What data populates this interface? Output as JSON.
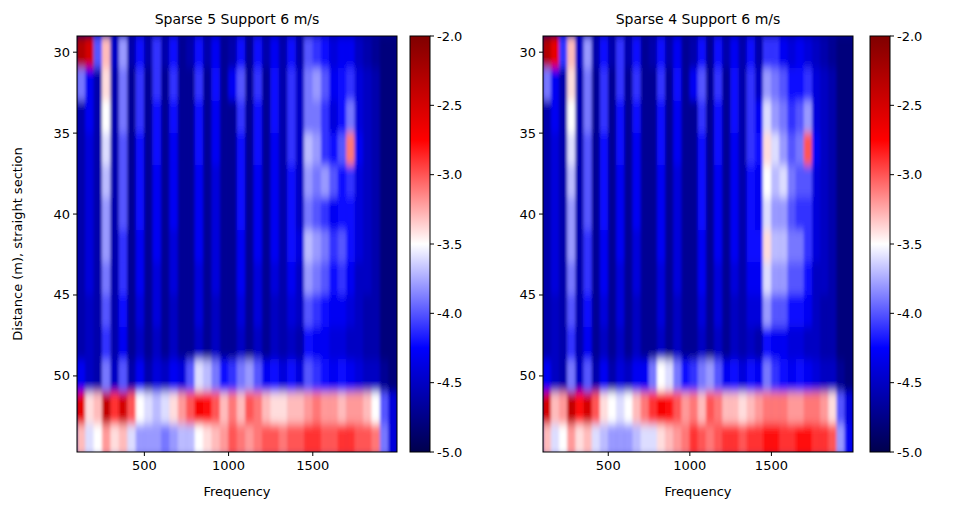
{
  "chart_data": [
    {
      "type": "heatmap",
      "title": "Sparse 5 Support 6 m/s",
      "x_label": "Frequency",
      "y_label": "Distance (m), straight section",
      "x": [
        125,
        175,
        225,
        275,
        325,
        375,
        425,
        475,
        525,
        575,
        625,
        675,
        725,
        775,
        825,
        875,
        925,
        975,
        1025,
        1075,
        1125,
        1175,
        1225,
        1275,
        1325,
        1375,
        1425,
        1475,
        1525,
        1575,
        1625,
        1675,
        1725,
        1775,
        1825,
        1875,
        1925,
        1975
      ],
      "y": [
        30,
        32,
        34,
        36,
        38,
        40,
        42,
        44,
        46,
        48,
        50,
        52,
        54
      ],
      "values": [
        [
          -2.3,
          -2.5,
          -4.0,
          -3.3,
          -4.5,
          -3.8,
          -4.6,
          -4.2,
          -4.6,
          -4.1,
          -4.6,
          -4.2,
          -4.7,
          -4.6,
          -4.2,
          -4.6,
          -4.3,
          -4.7,
          -4.6,
          -4.2,
          -4.7,
          -4.2,
          -4.6,
          -4.3,
          -4.6,
          -4.2,
          -4.6,
          -4.0,
          -4.1,
          -4.2,
          -4.4,
          -4.3,
          -4.3,
          -4.5,
          -4.6,
          -4.7,
          -4.8,
          -4.8
        ],
        [
          -3.9,
          -4.3,
          -4.6,
          -3.4,
          -4.6,
          -3.9,
          -4.7,
          -4.1,
          -4.7,
          -4.1,
          -4.7,
          -4.1,
          -4.7,
          -4.7,
          -4.1,
          -4.7,
          -4.2,
          -4.7,
          -4.3,
          -4.0,
          -4.7,
          -4.1,
          -4.7,
          -4.2,
          -4.6,
          -4.1,
          -4.5,
          -3.9,
          -3.8,
          -4.0,
          -4.3,
          -4.2,
          -4.1,
          -4.4,
          -4.5,
          -4.6,
          -4.8,
          -4.8
        ],
        [
          -4.6,
          -4.3,
          -4.6,
          -3.5,
          -4.6,
          -3.9,
          -4.7,
          -4.1,
          -4.7,
          -4.2,
          -4.7,
          -4.2,
          -4.7,
          -4.7,
          -4.2,
          -4.7,
          -4.3,
          -4.7,
          -4.7,
          -4.1,
          -4.7,
          -4.2,
          -4.7,
          -4.2,
          -4.6,
          -4.1,
          -4.5,
          -3.9,
          -3.9,
          -4.1,
          -4.4,
          -4.2,
          -3.9,
          -4.4,
          -4.5,
          -4.6,
          -4.8,
          -4.8
        ],
        [
          -4.6,
          -4.4,
          -4.6,
          -3.6,
          -4.6,
          -4.0,
          -4.7,
          -4.2,
          -4.7,
          -4.2,
          -4.7,
          -4.3,
          -4.7,
          -4.7,
          -4.2,
          -4.7,
          -4.3,
          -4.7,
          -4.7,
          -4.2,
          -4.7,
          -4.2,
          -4.7,
          -4.3,
          -4.6,
          -4.1,
          -4.5,
          -3.7,
          -3.8,
          -4.1,
          -4.2,
          -4.0,
          -3.1,
          -4.3,
          -4.5,
          -4.6,
          -4.8,
          -4.8
        ],
        [
          -4.6,
          -4.4,
          -4.6,
          -3.7,
          -4.6,
          -4.0,
          -4.7,
          -4.2,
          -4.7,
          -4.3,
          -4.7,
          -4.3,
          -4.7,
          -4.7,
          -4.3,
          -4.7,
          -4.4,
          -4.7,
          -4.7,
          -4.2,
          -4.7,
          -4.3,
          -4.7,
          -4.3,
          -4.6,
          -4.2,
          -4.5,
          -3.8,
          -3.9,
          -3.8,
          -4.0,
          -4.2,
          -4.1,
          -4.4,
          -4.5,
          -4.6,
          -4.8,
          -4.8
        ],
        [
          -4.6,
          -4.4,
          -4.6,
          -3.8,
          -4.6,
          -4.0,
          -4.7,
          -4.2,
          -4.7,
          -4.3,
          -4.7,
          -4.3,
          -4.7,
          -4.7,
          -4.3,
          -4.7,
          -4.4,
          -4.7,
          -4.7,
          -4.2,
          -4.7,
          -4.3,
          -4.7,
          -4.3,
          -4.6,
          -4.2,
          -4.5,
          -3.9,
          -4.0,
          -4.1,
          -4.3,
          -4.2,
          -4.2,
          -4.4,
          -4.5,
          -4.6,
          -4.8,
          -4.8
        ],
        [
          -4.6,
          -4.4,
          -4.6,
          -3.8,
          -4.6,
          -4.1,
          -4.7,
          -4.3,
          -4.7,
          -4.3,
          -4.7,
          -4.4,
          -4.7,
          -4.7,
          -4.3,
          -4.7,
          -4.4,
          -4.7,
          -4.7,
          -4.3,
          -4.7,
          -4.3,
          -4.7,
          -4.3,
          -4.6,
          -4.2,
          -4.4,
          -3.7,
          -3.8,
          -3.9,
          -4.1,
          -4.0,
          -4.2,
          -4.4,
          -4.5,
          -4.6,
          -4.8,
          -4.8
        ],
        [
          -4.6,
          -4.4,
          -4.6,
          -3.9,
          -4.6,
          -4.1,
          -4.7,
          -4.3,
          -4.7,
          -4.4,
          -4.7,
          -4.4,
          -4.7,
          -4.7,
          -4.4,
          -4.7,
          -4.4,
          -4.7,
          -4.7,
          -4.3,
          -4.7,
          -4.4,
          -4.7,
          -4.4,
          -4.6,
          -4.3,
          -4.5,
          -3.8,
          -3.9,
          -4.0,
          -4.2,
          -4.1,
          -4.3,
          -4.5,
          -4.5,
          -4.6,
          -4.8,
          -4.8
        ],
        [
          -4.6,
          -4.5,
          -4.6,
          -4.0,
          -4.6,
          -4.2,
          -4.7,
          -4.4,
          -4.7,
          -4.4,
          -4.7,
          -4.5,
          -4.7,
          -4.7,
          -4.4,
          -4.7,
          -4.5,
          -4.7,
          -4.7,
          -4.4,
          -4.7,
          -4.4,
          -4.7,
          -4.5,
          -4.6,
          -4.4,
          -4.5,
          -4.0,
          -4.1,
          -4.2,
          -4.3,
          -4.3,
          -4.4,
          -4.5,
          -4.6,
          -4.6,
          -4.8,
          -4.8
        ],
        [
          -4.6,
          -4.5,
          -4.6,
          -4.1,
          -4.6,
          -4.3,
          -4.7,
          -4.5,
          -4.7,
          -4.5,
          -4.7,
          -4.5,
          -4.7,
          -4.7,
          -4.5,
          -4.7,
          -4.5,
          -4.7,
          -4.7,
          -4.5,
          -4.7,
          -4.5,
          -4.7,
          -4.5,
          -4.6,
          -4.5,
          -4.6,
          -4.2,
          -4.3,
          -4.3,
          -4.4,
          -4.4,
          -4.5,
          -4.5,
          -4.6,
          -4.6,
          -4.8,
          -4.8
        ],
        [
          -4.3,
          -4.5,
          -4.6,
          -3.9,
          -4.5,
          -4.0,
          -4.6,
          -4.3,
          -4.6,
          -4.4,
          -4.5,
          -4.3,
          -4.4,
          -4.0,
          -3.6,
          -3.7,
          -3.9,
          -4.2,
          -4.1,
          -3.9,
          -3.8,
          -4.0,
          -4.3,
          -4.2,
          -4.4,
          -4.2,
          -4.4,
          -4.0,
          -4.1,
          -4.2,
          -4.3,
          -4.2,
          -4.3,
          -4.4,
          -4.5,
          -4.5,
          -4.7,
          -4.8
        ],
        [
          -2.6,
          -3.4,
          -3.3,
          -2.4,
          -2.9,
          -2.5,
          -3.0,
          -3.5,
          -3.6,
          -3.7,
          -3.6,
          -3.4,
          -3.2,
          -3.0,
          -2.7,
          -2.8,
          -3.0,
          -3.3,
          -3.1,
          -3.3,
          -3.0,
          -3.1,
          -3.3,
          -3.4,
          -3.4,
          -3.3,
          -3.3,
          -3.2,
          -3.1,
          -3.2,
          -3.2,
          -3.3,
          -3.2,
          -3.2,
          -3.3,
          -3.5,
          -4.0,
          -4.4
        ],
        [
          -3.3,
          -3.6,
          -3.5,
          -3.2,
          -3.4,
          -3.3,
          -3.6,
          -3.8,
          -3.8,
          -3.8,
          -3.9,
          -3.8,
          -3.7,
          -3.7,
          -3.5,
          -3.4,
          -3.3,
          -3.2,
          -3.0,
          -3.1,
          -3.2,
          -3.1,
          -3.0,
          -3.0,
          -3.1,
          -3.0,
          -3.0,
          -2.9,
          -2.9,
          -3.0,
          -3.0,
          -2.9,
          -2.9,
          -3.0,
          -3.0,
          -3.1,
          -3.9,
          -4.4
        ]
      ],
      "xlim": [
        100,
        2000
      ],
      "xticks": [
        500,
        1000,
        1500
      ],
      "ylim": [
        54.7,
        29
      ],
      "yticks": [
        30,
        35,
        40,
        45,
        50
      ],
      "colorbar_range": [
        -5,
        -2
      ],
      "colorbar_ticks": [
        {
          "value": -2,
          "label": "-2.0"
        },
        -2.5,
        {
          "value": -3,
          "label": "-3.0"
        },
        -3.5,
        {
          "value": -4,
          "label": "-4.0"
        },
        -4.5,
        {
          "value": -5,
          "label": "-5.0"
        }
      ]
    },
    {
      "type": "heatmap",
      "title": "Sparse 4 Support 6 m/s",
      "x_label": "Frequency",
      "x": [
        125,
        175,
        225,
        275,
        325,
        375,
        425,
        475,
        525,
        575,
        625,
        675,
        725,
        775,
        825,
        875,
        925,
        975,
        1025,
        1075,
        1125,
        1175,
        1225,
        1275,
        1325,
        1375,
        1425,
        1475,
        1525,
        1575,
        1625,
        1675,
        1725,
        1775,
        1825,
        1875,
        1925,
        1975
      ],
      "y": [
        30,
        32,
        34,
        36,
        38,
        40,
        42,
        44,
        46,
        48,
        50,
        52,
        54
      ],
      "values": [
        [
          -2.3,
          -2.6,
          -4.1,
          -3.3,
          -4.5,
          -3.8,
          -4.6,
          -4.2,
          -4.6,
          -4.1,
          -4.6,
          -4.2,
          -4.7,
          -4.6,
          -4.2,
          -4.6,
          -4.3,
          -4.7,
          -4.6,
          -4.2,
          -4.7,
          -4.2,
          -4.6,
          -4.3,
          -4.6,
          -4.2,
          -4.6,
          -4.1,
          -4.1,
          -4.3,
          -4.4,
          -4.3,
          -4.4,
          -4.5,
          -4.6,
          -4.7,
          -4.8,
          -4.8
        ],
        [
          -3.9,
          -4.3,
          -4.6,
          -3.4,
          -4.6,
          -3.9,
          -4.7,
          -4.1,
          -4.7,
          -4.1,
          -4.7,
          -4.1,
          -4.7,
          -4.7,
          -4.1,
          -4.7,
          -4.2,
          -4.7,
          -4.3,
          -4.0,
          -4.7,
          -4.1,
          -4.7,
          -4.2,
          -4.6,
          -4.1,
          -4.5,
          -3.8,
          -3.9,
          -4.0,
          -4.2,
          -4.2,
          -4.1,
          -4.4,
          -4.5,
          -4.6,
          -4.8,
          -4.8
        ],
        [
          -4.6,
          -4.3,
          -4.6,
          -3.5,
          -4.6,
          -3.9,
          -4.7,
          -4.1,
          -4.7,
          -4.2,
          -4.7,
          -4.2,
          -4.7,
          -4.7,
          -4.2,
          -4.7,
          -4.3,
          -4.7,
          -4.7,
          -4.1,
          -4.7,
          -4.2,
          -4.7,
          -4.2,
          -4.6,
          -4.1,
          -4.3,
          -3.6,
          -3.8,
          -3.9,
          -4.1,
          -4.0,
          -3.8,
          -4.4,
          -4.5,
          -4.6,
          -4.8,
          -4.8
        ],
        [
          -4.6,
          -4.4,
          -4.6,
          -3.6,
          -4.6,
          -4.0,
          -4.7,
          -4.2,
          -4.7,
          -4.2,
          -4.7,
          -4.3,
          -4.7,
          -4.7,
          -4.2,
          -4.7,
          -4.3,
          -4.7,
          -4.7,
          -4.2,
          -4.7,
          -4.2,
          -4.7,
          -4.3,
          -4.6,
          -4.1,
          -4.2,
          -3.4,
          -3.6,
          -3.8,
          -4.0,
          -3.9,
          -3.0,
          -4.3,
          -4.5,
          -4.6,
          -4.8,
          -4.8
        ],
        [
          -4.6,
          -4.4,
          -4.6,
          -3.7,
          -4.6,
          -4.0,
          -4.7,
          -4.2,
          -4.7,
          -4.3,
          -4.7,
          -4.3,
          -4.7,
          -4.7,
          -4.3,
          -4.7,
          -4.4,
          -4.7,
          -4.7,
          -4.2,
          -4.7,
          -4.3,
          -4.7,
          -4.3,
          -4.6,
          -4.2,
          -4.3,
          -3.5,
          -3.7,
          -3.6,
          -3.9,
          -4.0,
          -4.0,
          -4.4,
          -4.5,
          -4.6,
          -4.8,
          -4.8
        ],
        [
          -4.6,
          -4.4,
          -4.6,
          -3.8,
          -4.6,
          -4.0,
          -4.7,
          -4.2,
          -4.7,
          -4.3,
          -4.7,
          -4.3,
          -4.7,
          -4.7,
          -4.3,
          -4.7,
          -4.4,
          -4.7,
          -4.7,
          -4.2,
          -4.7,
          -4.3,
          -4.7,
          -4.3,
          -4.6,
          -4.2,
          -4.3,
          -3.6,
          -3.8,
          -3.8,
          -4.0,
          -4.1,
          -4.1,
          -4.4,
          -4.5,
          -4.6,
          -4.8,
          -4.8
        ],
        [
          -4.6,
          -4.4,
          -4.6,
          -3.8,
          -4.6,
          -4.1,
          -4.7,
          -4.3,
          -4.7,
          -4.3,
          -4.7,
          -4.4,
          -4.7,
          -4.7,
          -4.3,
          -4.7,
          -4.4,
          -4.7,
          -4.7,
          -4.3,
          -4.7,
          -4.3,
          -4.7,
          -4.3,
          -4.6,
          -4.2,
          -4.2,
          -3.4,
          -3.7,
          -3.7,
          -3.9,
          -3.9,
          -4.1,
          -4.4,
          -4.5,
          -4.6,
          -4.8,
          -4.8
        ],
        [
          -4.6,
          -4.4,
          -4.6,
          -3.9,
          -4.6,
          -4.1,
          -4.7,
          -4.3,
          -4.7,
          -4.4,
          -4.7,
          -4.4,
          -4.7,
          -4.7,
          -4.4,
          -4.7,
          -4.4,
          -4.7,
          -4.7,
          -4.3,
          -4.7,
          -4.4,
          -4.7,
          -4.4,
          -4.6,
          -4.3,
          -4.3,
          -3.6,
          -3.8,
          -3.8,
          -4.0,
          -4.0,
          -4.2,
          -4.5,
          -4.5,
          -4.6,
          -4.8,
          -4.8
        ],
        [
          -4.6,
          -4.5,
          -4.6,
          -4.0,
          -4.6,
          -4.2,
          -4.7,
          -4.4,
          -4.7,
          -4.4,
          -4.7,
          -4.5,
          -4.7,
          -4.7,
          -4.4,
          -4.7,
          -4.5,
          -4.7,
          -4.7,
          -4.4,
          -4.7,
          -4.4,
          -4.7,
          -4.5,
          -4.6,
          -4.4,
          -4.4,
          -3.8,
          -4.0,
          -4.0,
          -4.2,
          -4.2,
          -4.3,
          -4.5,
          -4.6,
          -4.6,
          -4.8,
          -4.8
        ],
        [
          -4.6,
          -4.5,
          -4.6,
          -4.1,
          -4.6,
          -4.3,
          -4.7,
          -4.5,
          -4.7,
          -4.5,
          -4.7,
          -4.5,
          -4.7,
          -4.7,
          -4.5,
          -4.7,
          -4.5,
          -4.7,
          -4.7,
          -4.5,
          -4.7,
          -4.5,
          -4.7,
          -4.5,
          -4.6,
          -4.5,
          -4.6,
          -4.2,
          -4.3,
          -4.3,
          -4.4,
          -4.4,
          -4.5,
          -4.5,
          -4.6,
          -4.6,
          -4.8,
          -4.8
        ],
        [
          -4.3,
          -4.5,
          -4.6,
          -3.9,
          -4.5,
          -4.0,
          -4.6,
          -4.3,
          -4.6,
          -4.4,
          -4.5,
          -4.3,
          -4.3,
          -3.9,
          -3.5,
          -3.6,
          -3.9,
          -4.2,
          -4.1,
          -3.9,
          -3.8,
          -4.0,
          -4.3,
          -4.2,
          -4.4,
          -4.2,
          -4.3,
          -3.9,
          -4.1,
          -4.2,
          -4.3,
          -4.2,
          -4.3,
          -4.4,
          -4.5,
          -4.5,
          -4.7,
          -4.8
        ],
        [
          -2.5,
          -3.3,
          -3.2,
          -2.4,
          -2.8,
          -2.5,
          -3.0,
          -3.4,
          -3.5,
          -3.6,
          -3.5,
          -3.3,
          -3.1,
          -2.9,
          -2.7,
          -2.8,
          -3.0,
          -3.2,
          -3.1,
          -3.3,
          -3.0,
          -3.1,
          -3.3,
          -3.3,
          -3.4,
          -3.3,
          -3.2,
          -3.1,
          -3.1,
          -3.1,
          -3.2,
          -3.2,
          -3.1,
          -3.1,
          -3.2,
          -3.4,
          -4.0,
          -4.4
        ],
        [
          -3.3,
          -3.6,
          -3.5,
          -3.2,
          -3.4,
          -3.3,
          -3.6,
          -3.7,
          -3.8,
          -3.8,
          -3.8,
          -3.7,
          -3.6,
          -3.6,
          -3.4,
          -3.3,
          -3.2,
          -3.1,
          -2.9,
          -3.0,
          -3.1,
          -3.0,
          -2.9,
          -2.9,
          -3.0,
          -2.9,
          -2.9,
          -2.8,
          -2.8,
          -2.9,
          -2.9,
          -2.8,
          -2.8,
          -2.9,
          -2.9,
          -3.0,
          -3.8,
          -4.3
        ]
      ],
      "xlim": [
        100,
        2000
      ],
      "xticks": [
        500,
        1000,
        1500
      ],
      "ylim": [
        54.7,
        29
      ],
      "yticks": [
        30,
        35,
        40,
        45,
        50
      ],
      "colorbar_range": [
        -5,
        -2
      ],
      "colorbar_ticks": [
        {
          "value": -2,
          "label": "-2.0"
        },
        -2.5,
        {
          "value": -3,
          "label": "-3.0"
        },
        -3.5,
        {
          "value": -4,
          "label": "-4.0"
        },
        -4.5,
        {
          "value": -5,
          "label": "-5.0"
        }
      ]
    }
  ]
}
